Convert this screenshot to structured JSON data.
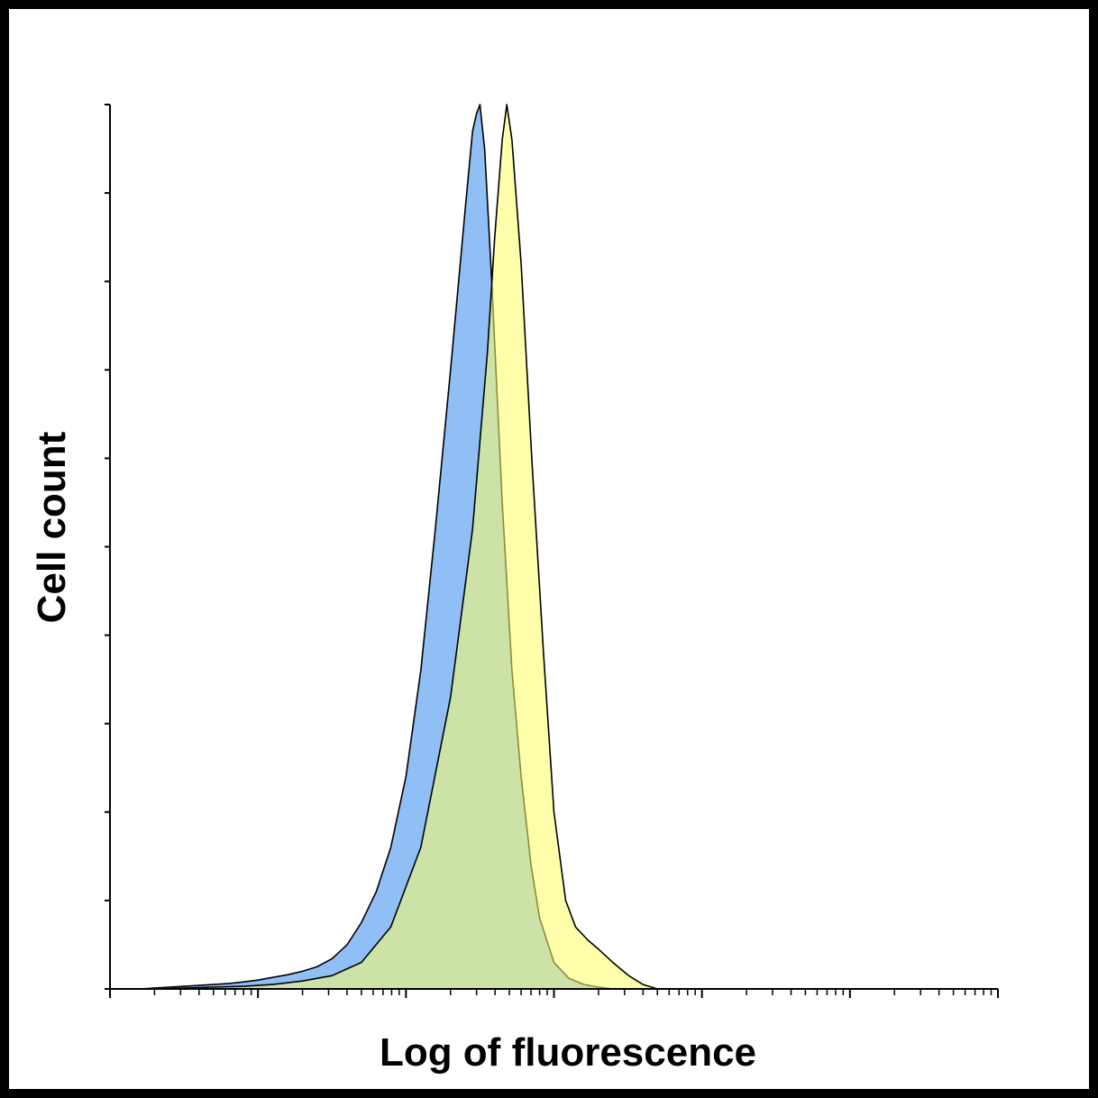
{
  "chart_data": {
    "type": "area",
    "title": "",
    "xlabel": "Log of fluorescence",
    "ylabel": "Cell count",
    "x_scale": "log",
    "x_decades": 6,
    "xlim": [
      1,
      1000000
    ],
    "ylim": [
      0,
      100
    ],
    "y_ticks": [
      0,
      10,
      20,
      30,
      40,
      50,
      60,
      70,
      80,
      90,
      100
    ],
    "grid": false,
    "legend": "none",
    "series": [
      {
        "color": "#8fbff5",
        "points": [
          [
            1.0,
            0
          ],
          [
            1.3,
            0
          ],
          [
            1.6,
            0
          ],
          [
            2.0,
            0.1
          ],
          [
            2.5,
            0.2
          ],
          [
            3.2,
            0.3
          ],
          [
            4.0,
            0.4
          ],
          [
            5.0,
            0.5
          ],
          [
            6.3,
            0.6
          ],
          [
            8.0,
            0.8
          ],
          [
            10,
            1.0
          ],
          [
            12.6,
            1.3
          ],
          [
            15.8,
            1.6
          ],
          [
            20,
            2.0
          ],
          [
            25,
            2.5
          ],
          [
            31.6,
            3.4
          ],
          [
            40,
            5.0
          ],
          [
            50,
            7.5
          ],
          [
            63,
            11
          ],
          [
            79,
            16
          ],
          [
            100,
            24
          ],
          [
            126,
            36
          ],
          [
            158,
            52
          ],
          [
            200,
            70
          ],
          [
            251,
            88
          ],
          [
            282,
            97
          ],
          [
            300,
            99
          ],
          [
            316,
            100
          ],
          [
            340,
            95
          ],
          [
            380,
            80
          ],
          [
            447,
            55
          ],
          [
            520,
            36
          ],
          [
            600,
            24
          ],
          [
            700,
            14
          ],
          [
            800,
            8
          ],
          [
            1000,
            3
          ],
          [
            1260,
            1.2
          ],
          [
            1600,
            0.5
          ],
          [
            2000,
            0.2
          ],
          [
            2500,
            0
          ]
        ]
      },
      {
        "color": "#ffff66",
        "points": [
          [
            1.0,
            0
          ],
          [
            2.0,
            0
          ],
          [
            3.2,
            0.1
          ],
          [
            5.0,
            0.2
          ],
          [
            8.0,
            0.3
          ],
          [
            12.6,
            0.5
          ],
          [
            20,
            0.9
          ],
          [
            31.6,
            1.5
          ],
          [
            50,
            3.0
          ],
          [
            79,
            7.0
          ],
          [
            126,
            16
          ],
          [
            200,
            33
          ],
          [
            282,
            52
          ],
          [
            355,
            72
          ],
          [
            398,
            85
          ],
          [
            447,
            96
          ],
          [
            480,
            100
          ],
          [
            520,
            96
          ],
          [
            600,
            82
          ],
          [
            708,
            60
          ],
          [
            850,
            38
          ],
          [
            1000,
            20
          ],
          [
            1200,
            10
          ],
          [
            1400,
            7
          ],
          [
            1700,
            5.5
          ],
          [
            2000,
            4.5
          ],
          [
            2500,
            3.0
          ],
          [
            3200,
            1.5
          ],
          [
            4000,
            0.5
          ],
          [
            5000,
            0
          ]
        ]
      }
    ]
  }
}
